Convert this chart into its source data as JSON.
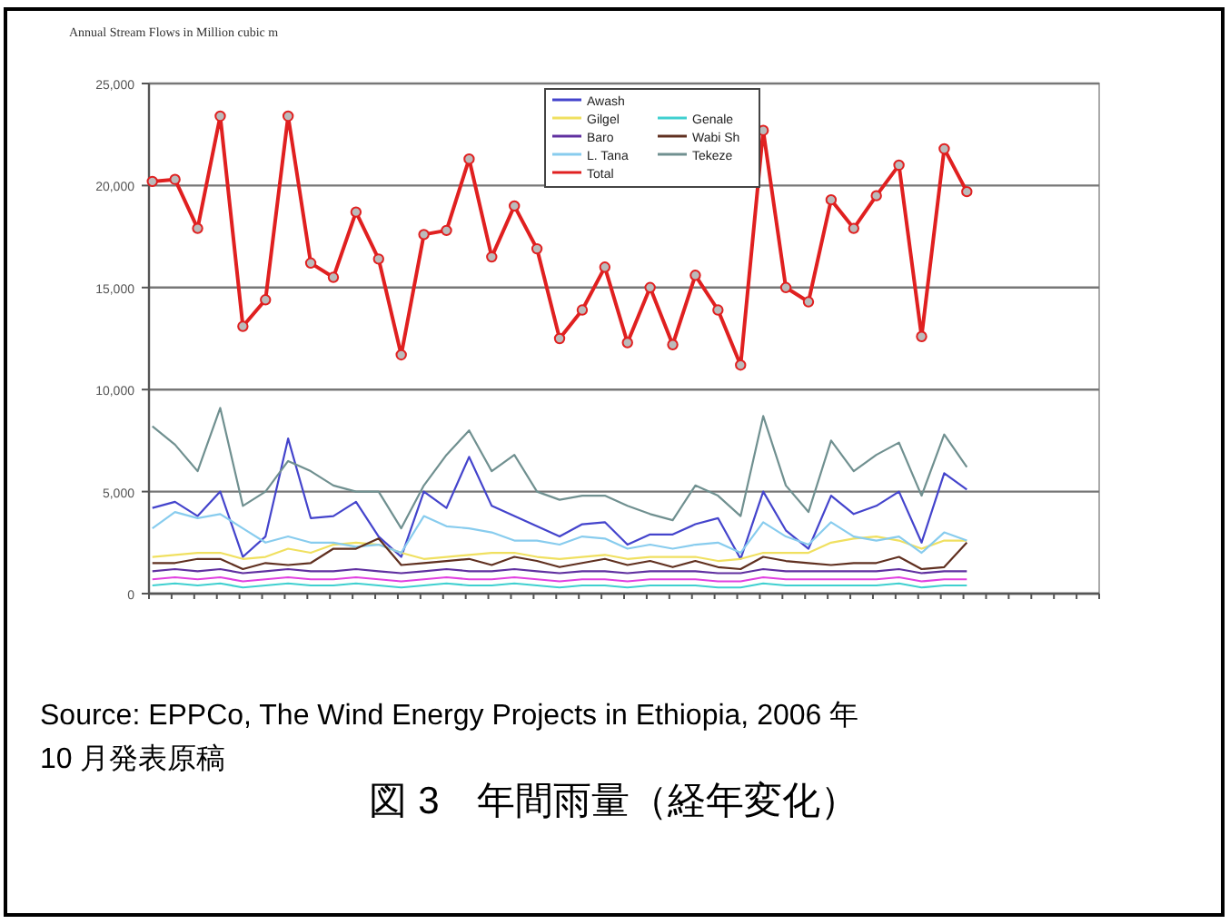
{
  "chart_data": {
    "type": "line",
    "title": "Annual Stream Flows in Million cubic m",
    "annotations": [
      "Source: EPPCo, The Wind Energy Projects in Ethiopia, 2006 年 10 月発表原稿",
      "図 3　年間雨量（経年変化）"
    ],
    "categories": [
      null,
      null,
      null,
      null,
      null,
      null,
      null,
      null,
      null,
      null,
      null,
      null,
      null,
      null,
      null,
      null,
      null,
      null,
      null,
      null,
      null,
      null,
      null,
      null,
      null,
      null,
      null,
      null,
      null,
      null,
      null,
      null,
      null,
      null,
      null,
      null,
      null,
      null,
      null,
      null,
      null,
      null
    ],
    "ylim": [
      0,
      25000
    ],
    "yticks": [
      {
        "value": 0,
        "label": "0"
      },
      {
        "value": 5000,
        "label": "5,000"
      },
      {
        "value": 10000,
        "label": "10,000"
      },
      {
        "value": 15000,
        "label": "15,000"
      },
      {
        "value": 20000,
        "label": "20,000"
      },
      {
        "value": 25000,
        "label": "25,000"
      }
    ],
    "grid": "y",
    "legend": "top",
    "tick_labels": "y",
    "series": [
      {
        "name": "Awash",
        "color": "#4444cc",
        "values": [
          4200,
          4500,
          3800,
          5000,
          1800,
          2800,
          7600,
          3700,
          3800,
          4500,
          2800,
          1800,
          5000,
          4200,
          6700,
          4300,
          3800,
          3300,
          2800,
          3400,
          3500,
          2400,
          2900,
          2900,
          3400,
          3700,
          1700,
          5000,
          3100,
          2200,
          4800,
          3900,
          4300,
          5000,
          2500,
          5900,
          5100,
          null,
          null,
          null,
          null,
          null
        ]
      },
      {
        "name": "Gilgel",
        "color": "#f0e060",
        "values": [
          1800,
          1900,
          2000,
          2000,
          1700,
          1800,
          2200,
          2000,
          2400,
          2500,
          2400,
          2000,
          1700,
          1800,
          1900,
          2000,
          2000,
          1800,
          1700,
          1800,
          1900,
          1700,
          1800,
          1800,
          1800,
          1600,
          1700,
          2000,
          2000,
          2000,
          2500,
          2700,
          2800,
          2600,
          2200,
          2600,
          2600,
          null,
          null,
          null,
          null,
          null
        ]
      },
      {
        "name": "Baro",
        "color": "#6030a0",
        "values": [
          1100,
          1200,
          1100,
          1200,
          1000,
          1100,
          1200,
          1100,
          1100,
          1200,
          1100,
          1000,
          1100,
          1200,
          1100,
          1100,
          1200,
          1100,
          1000,
          1100,
          1100,
          1000,
          1100,
          1100,
          1100,
          1000,
          1000,
          1200,
          1100,
          1100,
          1100,
          1100,
          1100,
          1200,
          1000,
          1100,
          1100,
          null,
          null,
          null,
          null,
          null
        ]
      },
      {
        "name": "L. Tana",
        "color": "#88ccee",
        "values": [
          3200,
          4000,
          3700,
          3900,
          3200,
          2500,
          2800,
          2500,
          2500,
          2300,
          2400,
          2000,
          3800,
          3300,
          3200,
          3000,
          2600,
          2600,
          2400,
          2800,
          2700,
          2200,
          2400,
          2200,
          2400,
          2500,
          2000,
          3500,
          2800,
          2400,
          3500,
          2800,
          2600,
          2800,
          2000,
          3000,
          2600,
          null,
          null,
          null,
          null,
          null
        ]
      },
      {
        "name": "Total",
        "color": "#e02020",
        "marker": "circle",
        "values": [
          20200,
          20300,
          17900,
          23400,
          13100,
          14400,
          23400,
          16200,
          15500,
          18700,
          16400,
          11700,
          17600,
          17800,
          21300,
          16500,
          19000,
          16900,
          12500,
          13900,
          16000,
          12300,
          15000,
          12200,
          15600,
          13900,
          11200,
          22700,
          15000,
          14300,
          19300,
          17900,
          19500,
          21000,
          12600,
          21800,
          19700,
          null,
          null,
          null,
          null,
          null
        ]
      },
      {
        "color": "#e040e0",
        "values": [
          700,
          800,
          700,
          800,
          600,
          700,
          800,
          700,
          700,
          800,
          700,
          600,
          700,
          800,
          700,
          700,
          800,
          700,
          600,
          700,
          700,
          600,
          700,
          700,
          700,
          600,
          600,
          800,
          700,
          700,
          700,
          700,
          700,
          800,
          600,
          700,
          700,
          null,
          null,
          null,
          null,
          null
        ]
      },
      {
        "name": "Genale",
        "color": "#40d0d0",
        "values": [
          400,
          500,
          400,
          500,
          300,
          400,
          500,
          400,
          400,
          500,
          400,
          300,
          400,
          500,
          400,
          400,
          500,
          400,
          300,
          400,
          400,
          300,
          400,
          400,
          400,
          300,
          300,
          500,
          400,
          400,
          400,
          400,
          400,
          500,
          300,
          400,
          400,
          null,
          null,
          null,
          null,
          null
        ]
      },
      {
        "name": "Wabi Sh",
        "color": "#603020",
        "values": [
          1500,
          1500,
          1700,
          1700,
          1200,
          1500,
          1400,
          1500,
          2200,
          2200,
          2700,
          1400,
          1500,
          1600,
          1700,
          1400,
          1800,
          1600,
          1300,
          1500,
          1700,
          1400,
          1600,
          1300,
          1600,
          1300,
          1200,
          1800,
          1600,
          1500,
          1400,
          1500,
          1500,
          1800,
          1200,
          1300,
          2500,
          null,
          null,
          null,
          null,
          null
        ]
      },
      {
        "name": "Tekeze",
        "color": "#709090",
        "values": [
          8200,
          7300,
          6000,
          9100,
          4300,
          5000,
          6500,
          6000,
          5300,
          5000,
          5000,
          3200,
          5300,
          6800,
          8000,
          6000,
          6800,
          5000,
          4600,
          4800,
          4800,
          4300,
          3900,
          3600,
          5300,
          4800,
          3800,
          8700,
          5300,
          4000,
          7500,
          6000,
          6800,
          7400,
          4800,
          7800,
          6200,
          null,
          null,
          null,
          null,
          null
        ]
      }
    ]
  }
}
